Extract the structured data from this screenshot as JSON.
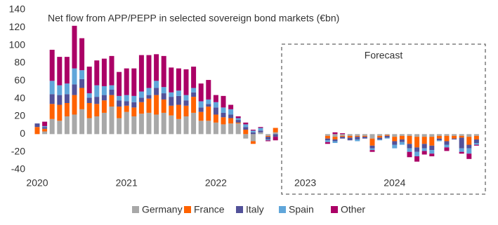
{
  "chart_data": {
    "type": "bar",
    "stacked": true,
    "title": "Net flow from APP/PEPP in selected sovereign bond markets (€bn)",
    "annotation": "Forecast",
    "categories": [
      "2020",
      null,
      null,
      null,
      null,
      null,
      null,
      null,
      null,
      null,
      null,
      null,
      "2021",
      null,
      null,
      null,
      null,
      null,
      null,
      null,
      null,
      null,
      null,
      null,
      "2022",
      null,
      null,
      null,
      null,
      null,
      null,
      null,
      null,
      null,
      null,
      null,
      "2023",
      null,
      null,
      null,
      null,
      null,
      null,
      null,
      null,
      null,
      null,
      null,
      "2024",
      null,
      null,
      null,
      null,
      null,
      null,
      null,
      null,
      null,
      null,
      null
    ],
    "ylim": [
      -40,
      140
    ],
    "yticks": [
      140,
      120,
      100,
      80,
      60,
      40,
      20,
      0,
      -20,
      -40
    ],
    "grid": false,
    "legend": "bottom",
    "series": [
      {
        "name": "Germany",
        "color": "#a8a8a8",
        "values": [
          0,
          3,
          17,
          15,
          20,
          22,
          28,
          18,
          20,
          24,
          31,
          18,
          25,
          20,
          23,
          24,
          22,
          24,
          21,
          17,
          20,
          24,
          15,
          15,
          13,
          11,
          12,
          12,
          -5,
          -8,
          2,
          -2,
          2,
          null,
          null,
          null,
          null,
          null,
          null,
          -2,
          -3,
          -2,
          -2,
          -2,
          -2,
          -5,
          -2,
          -1,
          -3,
          -2,
          -2,
          -3,
          -3,
          -3,
          -2,
          -2,
          -2,
          -2,
          -3,
          -2
        ]
      },
      {
        "name": "France",
        "color": "#ff6200",
        "values": [
          8,
          3,
          17,
          18,
          15,
          22,
          24,
          17,
          14,
          14,
          13,
          13,
          7,
          10,
          13,
          16,
          22,
          15,
          11,
          16,
          12,
          18,
          10,
          16,
          9,
          8,
          6,
          1,
          5,
          -3,
          0,
          -1,
          5,
          null,
          null,
          null,
          null,
          null,
          null,
          -3,
          -3,
          -1,
          -2,
          -1,
          -1,
          -8,
          -2,
          -1,
          -5,
          -4,
          -9,
          -12,
          -8,
          -10,
          -3,
          -6,
          -3,
          -2,
          -9,
          -4
        ]
      },
      {
        "name": "Italy",
        "color": "#525199",
        "values": [
          4,
          2,
          11,
          11,
          10,
          12,
          10,
          6,
          8,
          6,
          6,
          7,
          5,
          6,
          5,
          4,
          8,
          7,
          10,
          10,
          6,
          5,
          5,
          3,
          8,
          5,
          4,
          3,
          3,
          2,
          2,
          -3,
          -3,
          null,
          null,
          null,
          null,
          null,
          null,
          -2,
          -2,
          -2,
          -3,
          -3,
          -2,
          -3,
          -2,
          -2,
          -4,
          -3,
          -5,
          -5,
          -5,
          -5,
          -2,
          -4,
          -1,
          -12,
          -4,
          -4
        ]
      },
      {
        "name": "Spain",
        "color": "#60a6da",
        "values": [
          0,
          1,
          15,
          11,
          12,
          18,
          10,
          5,
          13,
          10,
          5,
          5,
          7,
          7,
          7,
          8,
          8,
          7,
          5,
          6,
          6,
          5,
          7,
          5,
          6,
          6,
          6,
          2,
          3,
          2,
          3,
          -1,
          0,
          null,
          null,
          null,
          null,
          null,
          null,
          -2,
          -2,
          0,
          0,
          -2,
          0,
          -2,
          -1,
          -1,
          -4,
          -3,
          -4,
          -5,
          -3,
          -4,
          -1,
          -3,
          0,
          -4,
          -6,
          -2
        ]
      },
      {
        "name": "Other",
        "color": "#ab0066",
        "values": [
          0,
          5,
          35,
          32,
          30,
          48,
          36,
          30,
          28,
          31,
          33,
          27,
          30,
          31,
          41,
          37,
          30,
          35,
          28,
          25,
          29,
          24,
          20,
          22,
          8,
          13,
          5,
          2,
          2,
          1,
          1,
          -1,
          -4,
          null,
          null,
          null,
          null,
          null,
          null,
          -2,
          2,
          1,
          0,
          0,
          0,
          -2,
          0,
          0,
          0,
          0,
          -6,
          -6,
          -4,
          -3,
          0,
          -4,
          0,
          -2,
          -6,
          -1
        ]
      }
    ]
  }
}
